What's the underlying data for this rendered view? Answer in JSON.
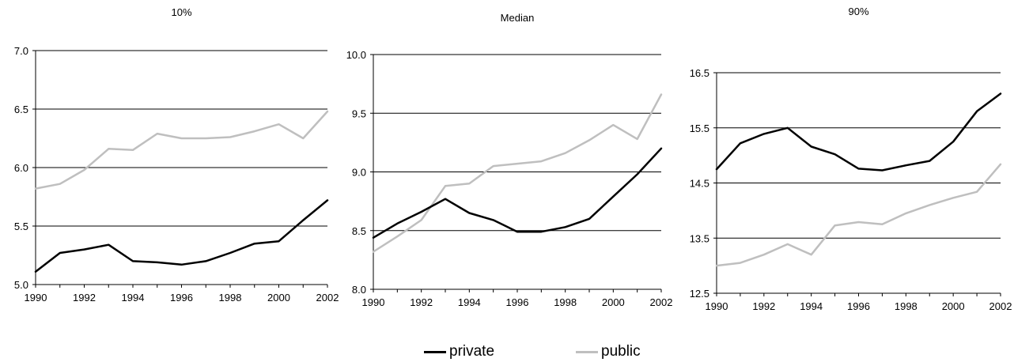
{
  "chart_data": [
    {
      "type": "line",
      "title": "10%",
      "x": [
        1990,
        1991,
        1992,
        1993,
        1994,
        1995,
        1996,
        1997,
        1998,
        1999,
        2000,
        2001,
        2002
      ],
      "x_ticks": [
        "1990",
        "1992",
        "1994",
        "1996",
        "1998",
        "2000",
        "2002"
      ],
      "y_ticks": [
        "5.0",
        "5.5",
        "6.0",
        "6.5",
        "7.0"
      ],
      "ylim": [
        5.0,
        7.0
      ],
      "grid": true,
      "series": [
        {
          "name": "private",
          "color": "#000000",
          "values": [
            5.11,
            5.27,
            5.3,
            5.34,
            5.2,
            5.19,
            5.17,
            5.2,
            5.27,
            5.35,
            5.37,
            5.55,
            5.72
          ]
        },
        {
          "name": "public",
          "color": "#bfbfbf",
          "values": [
            5.82,
            5.86,
            5.98,
            6.16,
            6.15,
            6.29,
            6.25,
            6.25,
            6.26,
            6.31,
            6.37,
            6.25,
            6.48
          ]
        }
      ]
    },
    {
      "type": "line",
      "title": "Median",
      "x": [
        1990,
        1991,
        1992,
        1993,
        1994,
        1995,
        1996,
        1997,
        1998,
        1999,
        2000,
        2001,
        2002
      ],
      "x_ticks": [
        "1990",
        "1992",
        "1994",
        "1996",
        "1998",
        "2000",
        "2002"
      ],
      "y_ticks": [
        "8.0",
        "8.5",
        "9.0",
        "9.5",
        "10.0"
      ],
      "ylim": [
        8.0,
        10.0
      ],
      "grid": true,
      "series": [
        {
          "name": "private",
          "color": "#000000",
          "values": [
            8.44,
            8.56,
            8.66,
            8.77,
            8.65,
            8.59,
            8.49,
            8.49,
            8.53,
            8.6,
            8.79,
            8.98,
            9.2
          ]
        },
        {
          "name": "public",
          "color": "#bfbfbf",
          "values": [
            8.32,
            8.45,
            8.59,
            8.88,
            8.9,
            9.05,
            9.07,
            9.09,
            9.16,
            9.27,
            9.4,
            9.28,
            9.66
          ]
        }
      ]
    },
    {
      "type": "line",
      "title": "90%",
      "x": [
        1990,
        1991,
        1992,
        1993,
        1994,
        1995,
        1996,
        1997,
        1998,
        1999,
        2000,
        2001,
        2002
      ],
      "x_ticks": [
        "1990",
        "1992",
        "1994",
        "1996",
        "1998",
        "2000",
        "2002"
      ],
      "y_ticks": [
        "12.5",
        "13.5",
        "14.5",
        "15.5",
        "16.5"
      ],
      "ylim": [
        12.5,
        16.5
      ],
      "grid": true,
      "series": [
        {
          "name": "private",
          "color": "#000000",
          "values": [
            14.75,
            15.22,
            15.39,
            15.5,
            15.16,
            15.02,
            14.76,
            14.73,
            14.82,
            14.9,
            15.25,
            15.8,
            16.12
          ]
        },
        {
          "name": "public",
          "color": "#bfbfbf",
          "values": [
            13.0,
            13.05,
            13.2,
            13.39,
            13.2,
            13.73,
            13.79,
            13.75,
            13.95,
            14.1,
            14.23,
            14.34,
            14.84
          ]
        }
      ]
    }
  ],
  "legend": [
    {
      "label": "private",
      "color": "#000000"
    },
    {
      "label": "public",
      "color": "#bfbfbf"
    }
  ]
}
